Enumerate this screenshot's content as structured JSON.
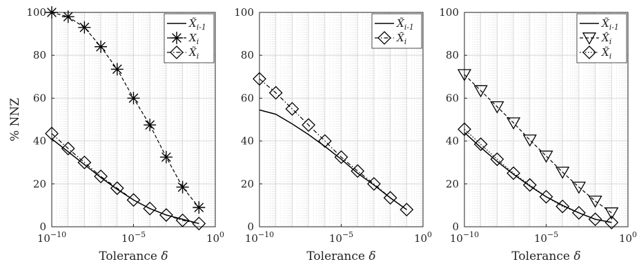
{
  "chart_data": [
    {
      "type": "line",
      "xscale": "log",
      "xlabel": "Tolerance δ",
      "ylabel": "% NNZ",
      "xlim": [
        1e-10,
        1
      ],
      "ylim": [
        0,
        100
      ],
      "xticks": [
        "10^-10",
        "10^-5",
        "10^0"
      ],
      "yticks": [
        0,
        20,
        40,
        60,
        80,
        100
      ],
      "grid": true,
      "legend_position": "top-right",
      "series": [
        {
          "name": "X̃_{i-1}",
          "style": "solid",
          "marker": "none",
          "x": [
            1e-10,
            1e-09,
            1e-08,
            1e-07,
            1e-06,
            1e-05,
            0.0001,
            0.001,
            0.01,
            0.1
          ],
          "y": [
            41,
            35,
            29,
            23,
            17.5,
            12.5,
            8.5,
            5.5,
            3.5,
            1.5
          ]
        },
        {
          "name": "X_i",
          "style": "dashed",
          "marker": "asterisk",
          "x": [
            1e-10,
            1e-09,
            1e-08,
            1e-07,
            1e-06,
            1e-05,
            0.0001,
            0.001,
            0.01,
            0.1
          ],
          "y": [
            100,
            98,
            93,
            84,
            73.5,
            60,
            47.5,
            32.5,
            18.5,
            9
          ]
        },
        {
          "name": "X̃_i",
          "style": "dashdot",
          "marker": "diamond",
          "x": [
            1e-10,
            1e-09,
            1e-08,
            1e-07,
            1e-06,
            1e-05,
            0.0001,
            0.001,
            0.01,
            0.1
          ],
          "y": [
            43.5,
            36.5,
            30,
            23.5,
            18,
            12.5,
            8.5,
            5.5,
            3,
            1.5
          ]
        }
      ]
    },
    {
      "type": "line",
      "xscale": "log",
      "xlabel": "Tolerance δ",
      "ylabel": "",
      "xlim": [
        1e-10,
        1
      ],
      "ylim": [
        0,
        100
      ],
      "xticks": [
        "10^-10",
        "10^-5",
        "10^0"
      ],
      "yticks": [
        0,
        20,
        40,
        60,
        80,
        100
      ],
      "grid": true,
      "legend_position": "top-right",
      "series": [
        {
          "name": "X̃_{i-1}",
          "style": "solid",
          "marker": "none",
          "x": [
            1e-10,
            1e-09,
            1e-08,
            1e-07,
            1e-06,
            1e-05,
            0.0001,
            0.001,
            0.01,
            0.1
          ],
          "y": [
            54.5,
            52.5,
            48,
            43,
            37.5,
            31.5,
            25,
            19.5,
            13.5,
            8
          ]
        },
        {
          "name": "X̃_i",
          "style": "dashdot",
          "marker": "diamond",
          "x": [
            1e-10,
            1e-09,
            1e-08,
            1e-07,
            1e-06,
            1e-05,
            0.0001,
            0.001,
            0.01,
            0.1
          ],
          "y": [
            69,
            62.5,
            55,
            47.5,
            40,
            32.5,
            26,
            20,
            13.5,
            8
          ]
        }
      ]
    },
    {
      "type": "line",
      "xscale": "log",
      "xlabel": "Tolerance δ",
      "ylabel": "",
      "xlim": [
        1e-10,
        1
      ],
      "ylim": [
        0,
        100
      ],
      "xticks": [
        "10^-10",
        "10^-5",
        "10^0"
      ],
      "yticks": [
        0,
        20,
        40,
        60,
        80,
        100
      ],
      "grid": true,
      "legend_position": "top-right",
      "series": [
        {
          "name": "X̃_{i-1}",
          "style": "solid",
          "marker": "none",
          "x": [
            1e-10,
            1e-09,
            1e-08,
            1e-07,
            1e-06,
            1e-05,
            0.0001,
            0.001,
            0.01,
            0.1
          ],
          "y": [
            44,
            37,
            30.5,
            24.5,
            19,
            14,
            10,
            6.5,
            3.5,
            2
          ]
        },
        {
          "name": "X̂_i",
          "style": "dashed",
          "marker": "triangle-down",
          "x": [
            1e-10,
            1e-09,
            1e-08,
            1e-07,
            1e-06,
            1e-05,
            0.0001,
            0.001,
            0.01,
            0.1
          ],
          "y": [
            71,
            63.5,
            56,
            48.5,
            40.5,
            33,
            25.5,
            18.5,
            12,
            6.5
          ]
        },
        {
          "name": "X̃_i",
          "style": "dotted",
          "marker": "diamond",
          "x": [
            1e-10,
            1e-09,
            1e-08,
            1e-07,
            1e-06,
            1e-05,
            0.0001,
            0.001,
            0.01,
            0.1
          ],
          "y": [
            45.5,
            38.5,
            31.5,
            25,
            19.5,
            14,
            9.5,
            6.5,
            3.5,
            2
          ]
        }
      ]
    }
  ]
}
